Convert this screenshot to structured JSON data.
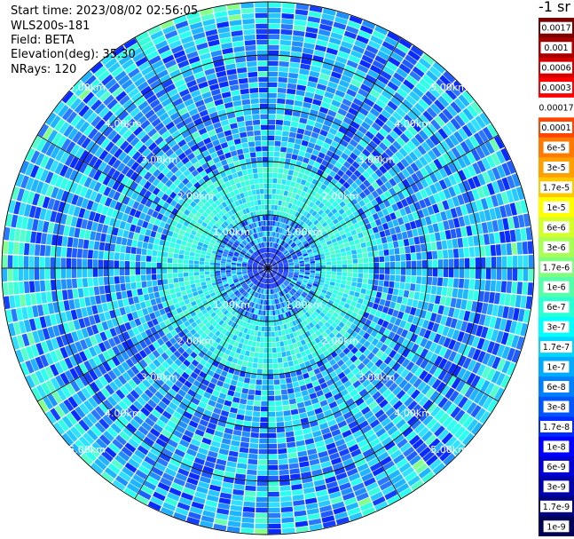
{
  "header": {
    "start_time": "Start time: 2023/08/02 02:56:05",
    "device": "WLS200s-181",
    "field": "Field: BETA",
    "elevation": "Elevation(deg): 35.30",
    "nrays": "NRays: 120"
  },
  "chart_data": {
    "type": "heatmap",
    "projection": "polar PPI",
    "nrays": 120,
    "max_range_km": 5.0,
    "range_rings_km": [
      1,
      2,
      3,
      4,
      5
    ],
    "range_labels": [
      "1.00km",
      "2.00km",
      "3.00km",
      "4.00km",
      "5.00km"
    ],
    "spokes_deg": [
      0,
      30,
      60,
      90,
      120,
      150,
      180,
      210,
      240,
      270,
      300,
      330
    ],
    "colorbar": {
      "unit_label": "-1 sr",
      "tick_labels": [
        "0.0017",
        "0.001",
        "0.0006",
        "0.0003",
        "0.00017",
        "0.0001",
        "6e-5",
        "3e-5",
        "1.7e-5",
        "1e-5",
        "6e-6",
        "3e-6",
        "1.7e-6",
        "1e-6",
        "6e-7",
        "3e-7",
        "1.7e-7",
        "1e-7",
        "6e-8",
        "3e-8",
        "1.7e-8",
        "1e-8",
        "6e-9",
        "3e-9",
        "1.7e-9",
        "1e-9"
      ],
      "colors": [
        "#7b0000",
        "#a80000",
        "#d40000",
        "#ff0000",
        "#ffffff",
        "#ff4500",
        "#ff7a00",
        "#ffa000",
        "#ffc800",
        "#ffff00",
        "#d4ff2b",
        "#aaff55",
        "#7fff7f",
        "#55ffaa",
        "#2bffd4",
        "#00ffff",
        "#00d4ff",
        "#00aaff",
        "#0080ff",
        "#0055ff",
        "#002bff",
        "#0000ff",
        "#0000d4",
        "#0000aa",
        "#000080",
        "#000055"
      ],
      "range_approx": [
        1e-09,
        0.0017
      ]
    },
    "value_description": "Backscatter BETA: near field (<1 km) blue ~1e-8 to 6e-8; 1-2 km cyan ~1.7e-7; beyond 2 km mixed blue/cyan ~3e-8 to 1.7e-7 with sparse green ~6e-7 near outer edge"
  }
}
